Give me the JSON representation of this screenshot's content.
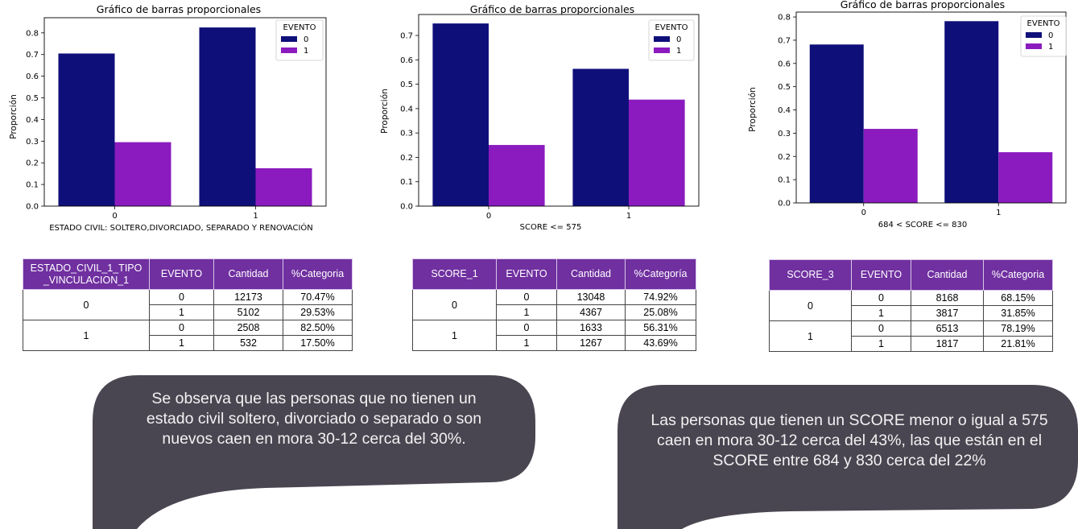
{
  "chart_data": [
    {
      "type": "bar",
      "title": "Gráfico de barras proporcionales",
      "xlabel": "ESTADO CIVIL: SOLTERO,DIVORCIADO, SEPARADO Y RENOVACIÓN",
      "ylabel": "Proporción",
      "categories": [
        "0",
        "1"
      ],
      "series": [
        {
          "name": "0",
          "values": [
            0.7047,
            0.825
          ],
          "color": "#0f0f7a"
        },
        {
          "name": "1",
          "values": [
            0.2953,
            0.175
          ],
          "color": "#8b1bbf"
        }
      ],
      "ylim": [
        0,
        0.87
      ],
      "yticks": [
        "0.0",
        "0.1",
        "0.2",
        "0.3",
        "0.4",
        "0.5",
        "0.6",
        "0.7",
        "0.8"
      ],
      "legend_title": "EVENTO",
      "legend_placement": "top-right",
      "grid": false
    },
    {
      "type": "bar",
      "title": "Gráfico de barras proporcionales",
      "xlabel": "SCORE <= 575",
      "ylabel": "Proporción",
      "categories": [
        "0",
        "1"
      ],
      "series": [
        {
          "name": "0",
          "values": [
            0.7492,
            0.5631
          ],
          "color": "#0f0f7a"
        },
        {
          "name": "1",
          "values": [
            0.2508,
            0.4369
          ],
          "color": "#8b1bbf"
        }
      ],
      "ylim": [
        0,
        0.786
      ],
      "yticks": [
        "0.0",
        "0.1",
        "0.2",
        "0.3",
        "0.4",
        "0.5",
        "0.6",
        "0.7"
      ],
      "legend_title": "EVENTO",
      "legend_placement": "top-right",
      "grid": false
    },
    {
      "type": "bar",
      "title": "Gráfico de barras proporcionales",
      "xlabel": "684 < SCORE <= 830",
      "ylabel": "Proporción",
      "categories": [
        "0",
        "1"
      ],
      "series": [
        {
          "name": "0",
          "values": [
            0.6815,
            0.7819
          ],
          "color": "#0f0f7a"
        },
        {
          "name": "1",
          "values": [
            0.3185,
            0.2181
          ],
          "color": "#8b1bbf"
        }
      ],
      "ylim": [
        0,
        0.821
      ],
      "yticks": [
        "0.0",
        "0.1",
        "0.2",
        "0.3",
        "0.4",
        "0.5",
        "0.6",
        "0.7",
        "0.8"
      ],
      "legend_title": "EVENTO",
      "legend_placement": "top-right",
      "grid": false
    }
  ],
  "tables": [
    {
      "headers": [
        "ESTADO_CIVIL_1_TIPO _VINCULACION_1",
        "EVENTO",
        "Cantidad",
        "%Categoria"
      ],
      "groups": [
        {
          "label": "0",
          "rows": [
            [
              "0",
              "12173",
              "70.47%"
            ],
            [
              "1",
              "5102",
              "29.53%"
            ]
          ]
        },
        {
          "label": "1",
          "rows": [
            [
              "0",
              "2508",
              "82.50%"
            ],
            [
              "1",
              "532",
              "17.50%"
            ]
          ]
        }
      ]
    },
    {
      "headers": [
        "SCORE_1",
        "EVENTO",
        "Cantidad",
        "%Categoría"
      ],
      "groups": [
        {
          "label": "0",
          "rows": [
            [
              "0",
              "13048",
              "74.92%"
            ],
            [
              "1",
              "4367",
              "25.08%"
            ]
          ]
        },
        {
          "label": "1",
          "rows": [
            [
              "0",
              "1633",
              "56.31%"
            ],
            [
              "1",
              "1267",
              "43.69%"
            ]
          ]
        }
      ]
    },
    {
      "headers": [
        "SCORE_3",
        "EVENTO",
        "Cantidad",
        "%Categoria"
      ],
      "groups": [
        {
          "label": "0",
          "rows": [
            [
              "0",
              "8168",
              "68.15%"
            ],
            [
              "1",
              "3817",
              "31.85%"
            ]
          ]
        },
        {
          "label": "1",
          "rows": [
            [
              "0",
              "6513",
              "78.19%"
            ],
            [
              "1",
              "1817",
              "21.81%"
            ]
          ]
        }
      ]
    }
  ],
  "callouts": [
    {
      "text": "Se observa que las personas que no tienen un estado civil soltero, divorciado o separado o son nuevos caen en mora 30-12 cerca del 30%."
    },
    {
      "text": "Las personas que tienen un SCORE menor o igual a 575 caen en mora 30-12 cerca del 43%, las que están en el SCORE entre 684 y 830 cerca del 22%"
    }
  ],
  "colors": {
    "bubble": "#4a4651",
    "table_header": "#7030a0"
  }
}
